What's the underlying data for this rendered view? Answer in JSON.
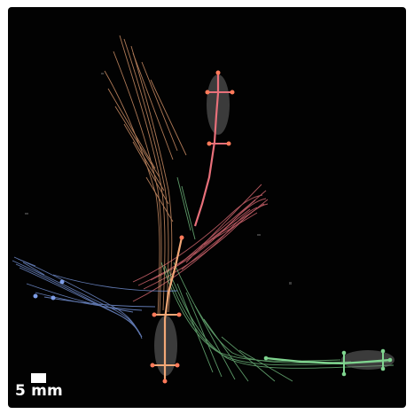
{
  "scale": {
    "label": "5 mm"
  },
  "colors": {
    "background": "#020202",
    "border": "#ffffff",
    "orange_track": "#f2a877",
    "red_track": "#e8707a",
    "green_track": "#7fd48f",
    "blue_track": "#7e9ee8",
    "annotation_dot": "#ff7a5a"
  },
  "subjects": [
    {
      "id": "red-animal",
      "color": "red"
    },
    {
      "id": "orange-animal",
      "color": "orange"
    },
    {
      "id": "green-animal",
      "color": "green"
    },
    {
      "id": "blue-animal",
      "color": "blue"
    }
  ]
}
